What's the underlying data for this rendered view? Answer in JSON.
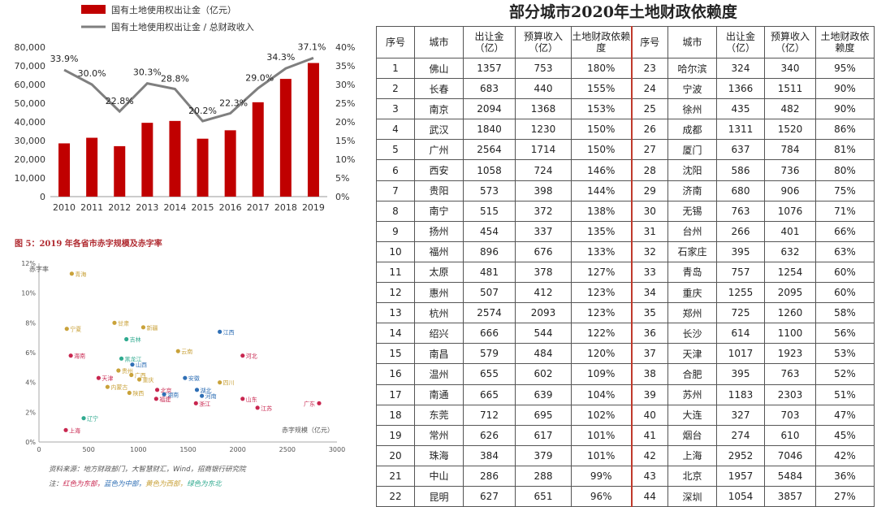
{
  "chart_data": [
    {
      "type": "bar",
      "categories": [
        "2010",
        "2011",
        "2012",
        "2013",
        "2014",
        "2015",
        "2016",
        "2017",
        "2018",
        "2019"
      ],
      "series": [
        {
          "name": "国有土地使用权出让金（亿元）",
          "kind": "bar",
          "axis": "left",
          "values": [
            28500,
            31500,
            27000,
            39500,
            40500,
            31000,
            35500,
            50500,
            63000,
            71500
          ]
        },
        {
          "name": "国有土地使用权出让金 / 总财政收入",
          "kind": "line",
          "axis": "right",
          "values": [
            33.9,
            30.0,
            22.8,
            30.3,
            28.8,
            20.2,
            22.3,
            29.0,
            34.3,
            37.1
          ],
          "labels": [
            "33.9%",
            "30.0%",
            "22.8%",
            "30.3%",
            "28.8%",
            "20.2%",
            "22.3%",
            "29.0%",
            "34.3%",
            "37.1%"
          ]
        }
      ],
      "ylim": [
        0,
        80000
      ],
      "y_ticks": [
        "0",
        "10,000",
        "20,000",
        "30,000",
        "40,000",
        "50,000",
        "60,000",
        "70,000",
        "80,000"
      ],
      "y2lim": [
        0,
        40
      ],
      "y2_ticks": [
        "0%",
        "5%",
        "10%",
        "15%",
        "20%",
        "25%",
        "30%",
        "35%",
        "40%"
      ],
      "legend_position": "top",
      "colors": {
        "bar": "#c00000",
        "line": "#7f7f7f"
      }
    },
    {
      "type": "scatter",
      "title": "图 5：2019 年各省市赤字规模及赤字率",
      "ylabel": "赤字率",
      "xlabel": "赤字规模（亿元）",
      "xlim": [
        0,
        3000
      ],
      "x_ticks": [
        "0",
        "500",
        "1000",
        "1500",
        "2000",
        "2500",
        "3000"
      ],
      "ylim": [
        0,
        12
      ],
      "y_ticks": [
        "0%",
        "2%",
        "4%",
        "6%",
        "8%",
        "10%",
        "12%"
      ],
      "groups": {
        "东部": "#c8264f",
        "中部": "#2f6fb5",
        "西部": "#c9a23a",
        "东北": "#2faa8f"
      },
      "points": [
        {
          "label": "青海",
          "x": 330,
          "y": 11.3,
          "group": "西部"
        },
        {
          "label": "宁夏",
          "x": 280,
          "y": 7.6,
          "group": "西部"
        },
        {
          "label": "甘肃",
          "x": 760,
          "y": 8.0,
          "group": "西部"
        },
        {
          "label": "新疆",
          "x": 1050,
          "y": 7.7,
          "group": "西部"
        },
        {
          "label": "吉林",
          "x": 880,
          "y": 6.9,
          "group": "东北"
        },
        {
          "label": "江西",
          "x": 1820,
          "y": 7.4,
          "group": "中部"
        },
        {
          "label": "海南",
          "x": 320,
          "y": 5.8,
          "group": "东部"
        },
        {
          "label": "黑龙江",
          "x": 830,
          "y": 5.6,
          "group": "东北"
        },
        {
          "label": "山西",
          "x": 940,
          "y": 5.2,
          "group": "中部"
        },
        {
          "label": "云南",
          "x": 1400,
          "y": 6.1,
          "group": "西部"
        },
        {
          "label": "河北",
          "x": 2050,
          "y": 5.8,
          "group": "东部"
        },
        {
          "label": "天津",
          "x": 600,
          "y": 4.3,
          "group": "东部"
        },
        {
          "label": "贵州",
          "x": 800,
          "y": 4.8,
          "group": "西部"
        },
        {
          "label": "广西",
          "x": 930,
          "y": 4.5,
          "group": "西部"
        },
        {
          "label": "重庆",
          "x": 1010,
          "y": 4.2,
          "group": "西部"
        },
        {
          "label": "内蒙古",
          "x": 690,
          "y": 3.7,
          "group": "西部"
        },
        {
          "label": "陕西",
          "x": 910,
          "y": 3.3,
          "group": "西部"
        },
        {
          "label": "安徽",
          "x": 1470,
          "y": 4.3,
          "group": "中部"
        },
        {
          "label": "湖北",
          "x": 1590,
          "y": 3.5,
          "group": "中部"
        },
        {
          "label": "四川",
          "x": 1820,
          "y": 4.0,
          "group": "西部"
        },
        {
          "label": "北京",
          "x": 1190,
          "y": 3.5,
          "group": "东部"
        },
        {
          "label": "湖南",
          "x": 1260,
          "y": 3.2,
          "group": "中部"
        },
        {
          "label": "福建",
          "x": 1180,
          "y": 2.9,
          "group": "东部"
        },
        {
          "label": "河南",
          "x": 1640,
          "y": 3.1,
          "group": "中部"
        },
        {
          "label": "浙江",
          "x": 1580,
          "y": 2.6,
          "group": "东部"
        },
        {
          "label": "山东",
          "x": 2050,
          "y": 2.9,
          "group": "东部"
        },
        {
          "label": "江苏",
          "x": 2200,
          "y": 2.3,
          "group": "东部"
        },
        {
          "label": "广东",
          "x": 2820,
          "y": 2.6,
          "group": "东部"
        },
        {
          "label": "辽宁",
          "x": 450,
          "y": 1.6,
          "group": "东北"
        },
        {
          "label": "上海",
          "x": 270,
          "y": 0.8,
          "group": "东部"
        }
      ]
    },
    {
      "type": "table",
      "title": "部分城市2020年土地财政依赖度",
      "columns": [
        "序号",
        "城市",
        "出让金（亿）",
        "预算收入（亿）",
        "土地财政依赖度"
      ],
      "rows": [
        [
          "1",
          "佛山",
          "1357",
          "753",
          "180%",
          "23",
          "哈尔滨",
          "324",
          "340",
          "95%"
        ],
        [
          "2",
          "长春",
          "683",
          "440",
          "155%",
          "24",
          "宁波",
          "1366",
          "1511",
          "90%"
        ],
        [
          "3",
          "南京",
          "2094",
          "1368",
          "153%",
          "25",
          "徐州",
          "435",
          "482",
          "90%"
        ],
        [
          "4",
          "武汉",
          "1840",
          "1230",
          "150%",
          "26",
          "成都",
          "1311",
          "1520",
          "86%"
        ],
        [
          "5",
          "广州",
          "2564",
          "1714",
          "150%",
          "27",
          "厦门",
          "637",
          "784",
          "81%"
        ],
        [
          "6",
          "西安",
          "1058",
          "724",
          "146%",
          "28",
          "沈阳",
          "586",
          "736",
          "80%"
        ],
        [
          "7",
          "贵阳",
          "573",
          "398",
          "144%",
          "29",
          "济南",
          "680",
          "906",
          "75%"
        ],
        [
          "8",
          "南宁",
          "515",
          "372",
          "138%",
          "30",
          "无锡",
          "763",
          "1076",
          "71%"
        ],
        [
          "9",
          "扬州",
          "454",
          "337",
          "135%",
          "31",
          "台州",
          "266",
          "401",
          "66%"
        ],
        [
          "10",
          "福州",
          "896",
          "676",
          "133%",
          "32",
          "石家庄",
          "395",
          "632",
          "63%"
        ],
        [
          "11",
          "太原",
          "481",
          "378",
          "127%",
          "33",
          "青岛",
          "757",
          "1254",
          "60%"
        ],
        [
          "12",
          "惠州",
          "507",
          "412",
          "123%",
          "34",
          "重庆",
          "1255",
          "2095",
          "60%"
        ],
        [
          "13",
          "杭州",
          "2574",
          "2093",
          "123%",
          "35",
          "郑州",
          "725",
          "1260",
          "58%"
        ],
        [
          "14",
          "绍兴",
          "666",
          "544",
          "122%",
          "36",
          "长沙",
          "614",
          "1100",
          "56%"
        ],
        [
          "15",
          "南昌",
          "579",
          "484",
          "120%",
          "37",
          "天津",
          "1017",
          "1923",
          "53%"
        ],
        [
          "16",
          "温州",
          "655",
          "602",
          "109%",
          "38",
          "合肥",
          "395",
          "763",
          "52%"
        ],
        [
          "17",
          "南通",
          "665",
          "639",
          "104%",
          "39",
          "苏州",
          "1183",
          "2303",
          "51%"
        ],
        [
          "18",
          "东莞",
          "712",
          "695",
          "102%",
          "40",
          "大连",
          "327",
          "703",
          "47%"
        ],
        [
          "19",
          "常州",
          "626",
          "617",
          "101%",
          "41",
          "烟台",
          "274",
          "610",
          "45%"
        ],
        [
          "20",
          "珠海",
          "384",
          "379",
          "101%",
          "42",
          "上海",
          "2952",
          "7046",
          "42%"
        ],
        [
          "21",
          "中山",
          "286",
          "288",
          "99%",
          "43",
          "北京",
          "1957",
          "5484",
          "36%"
        ],
        [
          "22",
          "昆明",
          "627",
          "651",
          "96%",
          "44",
          "深圳",
          "1054",
          "3857",
          "27%"
        ]
      ]
    }
  ],
  "notes": {
    "source": "资料来源：地方财政部门，大智慧财汇，Wind，招商银行研究院",
    "legend_prefix": "注：",
    "legend_items": [
      {
        "text": "红色为东部，",
        "color": "#c8264f"
      },
      {
        "text": "蓝色为中部，",
        "color": "#2f6fb5"
      },
      {
        "text": "黄色为西部，",
        "color": "#c9a23a"
      },
      {
        "text": "绿色为东北",
        "color": "#2faa8f"
      }
    ]
  }
}
